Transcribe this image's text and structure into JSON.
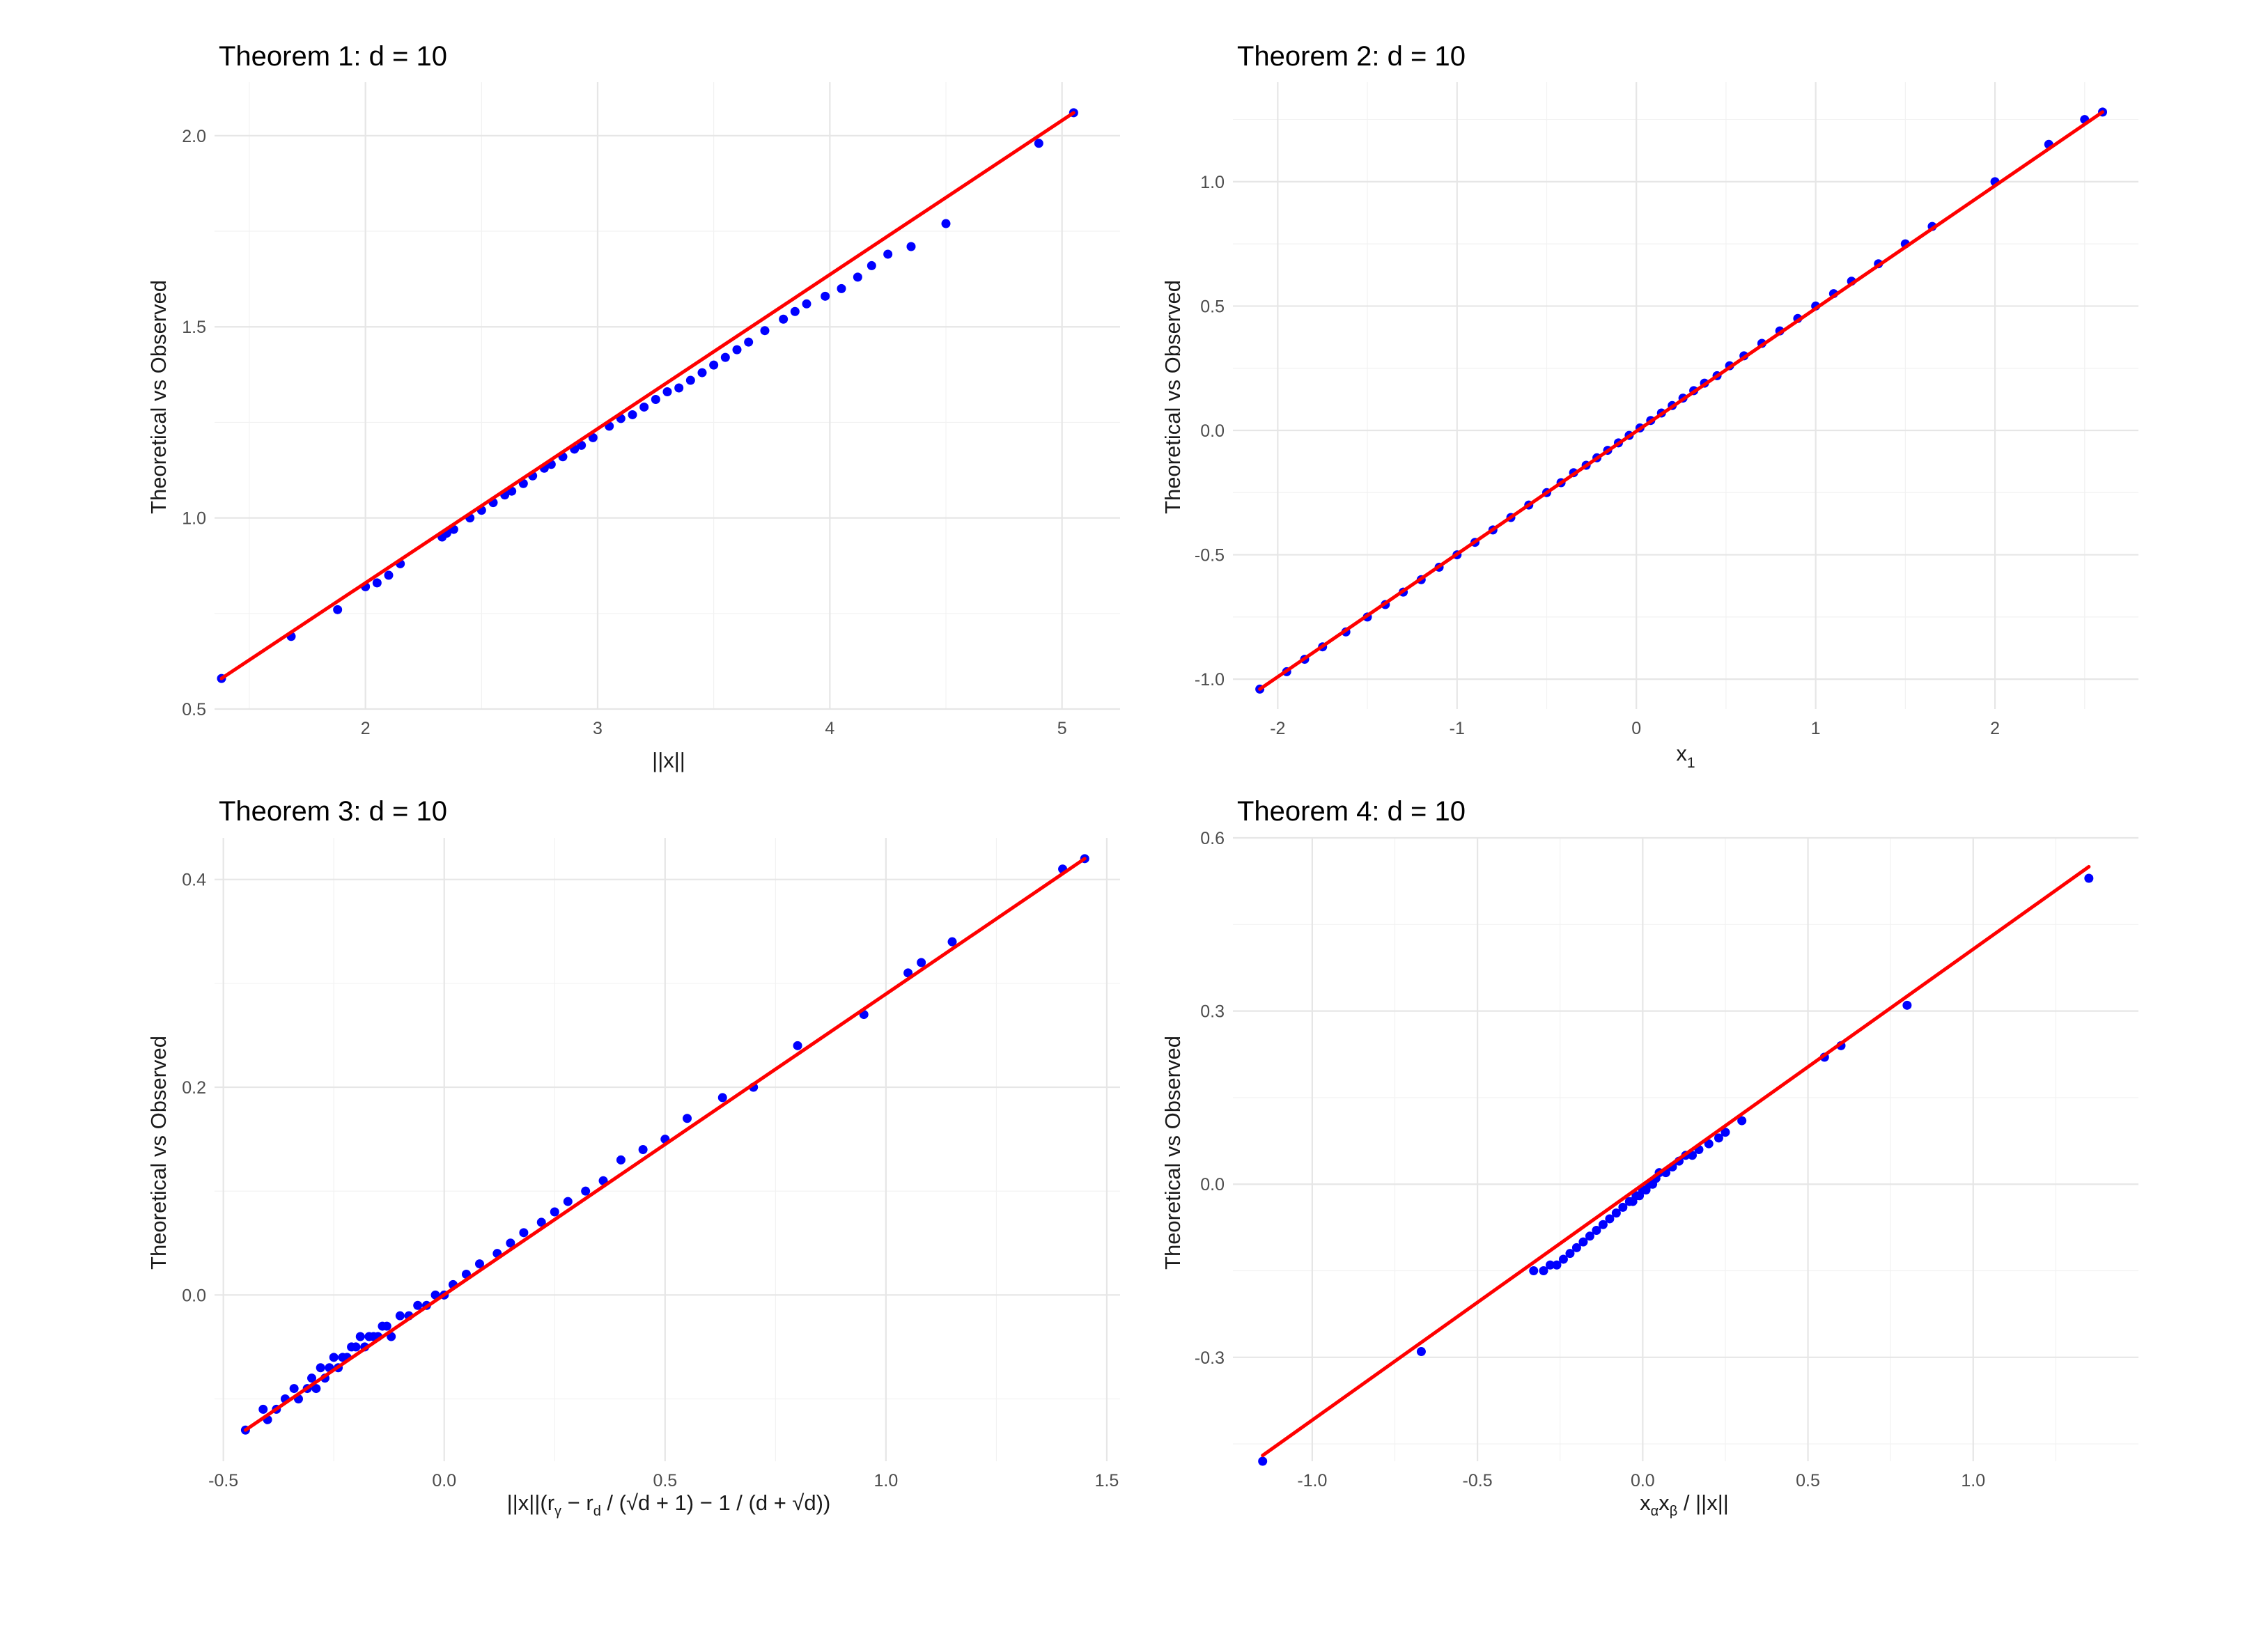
{
  "chart_data": [
    {
      "type": "scatter",
      "title": "Theorem 1: d = 10",
      "xlabel": "||x||",
      "ylabel": "Theoretical vs Observed",
      "xlim": [
        1.35,
        5.25
      ],
      "ylim": [
        0.5,
        2.14
      ],
      "xticks": [
        2,
        3,
        4,
        5
      ],
      "xtick_labels": [
        "2",
        "3",
        "4",
        "5"
      ],
      "yticks": [
        0.5,
        1.0,
        1.5,
        2.0
      ],
      "ytick_labels": [
        "0.5",
        "1.0",
        "1.5",
        "2.0"
      ],
      "grid": true,
      "point_color": "#0000ff",
      "line_color": "#ff0000",
      "line": {
        "x": [
          1.38,
          5.05
        ],
        "y": [
          0.58,
          2.06
        ]
      },
      "points": {
        "x": [
          1.38,
          1.68,
          1.88,
          2.0,
          2.05,
          2.1,
          2.15,
          2.33,
          2.35,
          2.38,
          2.45,
          2.5,
          2.55,
          2.6,
          2.63,
          2.68,
          2.72,
          2.77,
          2.8,
          2.85,
          2.9,
          2.93,
          2.98,
          3.05,
          3.1,
          3.15,
          3.2,
          3.25,
          3.3,
          3.35,
          3.4,
          3.45,
          3.5,
          3.55,
          3.6,
          3.65,
          3.72,
          3.8,
          3.85,
          3.9,
          3.98,
          4.05,
          4.12,
          4.18,
          4.25,
          4.35,
          4.5,
          4.9,
          5.05
        ],
        "y": [
          0.58,
          0.69,
          0.76,
          0.82,
          0.83,
          0.85,
          0.88,
          0.95,
          0.96,
          0.97,
          1.0,
          1.02,
          1.04,
          1.06,
          1.07,
          1.09,
          1.11,
          1.13,
          1.14,
          1.16,
          1.18,
          1.19,
          1.21,
          1.24,
          1.26,
          1.27,
          1.29,
          1.31,
          1.33,
          1.34,
          1.36,
          1.38,
          1.4,
          1.42,
          1.44,
          1.46,
          1.49,
          1.52,
          1.54,
          1.56,
          1.58,
          1.6,
          1.63,
          1.66,
          1.69,
          1.71,
          1.77,
          1.98,
          2.06
        ]
      }
    },
    {
      "type": "scatter",
      "title": "Theorem 2: d = 10",
      "xlabel": "x",
      "xlabel_sub": "1",
      "ylabel": "Theoretical vs Observed",
      "xlim": [
        -2.25,
        2.8
      ],
      "ylim": [
        -1.12,
        1.4
      ],
      "xticks": [
        -2,
        -1,
        0,
        1,
        2
      ],
      "xtick_labels": [
        "-2",
        "-1",
        "0",
        "1",
        "2"
      ],
      "yticks": [
        -1.0,
        -0.5,
        0.0,
        0.5,
        1.0
      ],
      "ytick_labels": [
        "-1.0",
        "-0.5",
        "0.0",
        "0.5",
        "1.0"
      ],
      "grid": true,
      "point_color": "#0000ff",
      "line_color": "#ff0000",
      "line": {
        "x": [
          -2.1,
          2.6
        ],
        "y": [
          -1.04,
          1.28
        ]
      },
      "points": {
        "x": [
          -2.1,
          -1.95,
          -1.85,
          -1.75,
          -1.62,
          -1.5,
          -1.4,
          -1.3,
          -1.2,
          -1.1,
          -1.0,
          -0.9,
          -0.8,
          -0.7,
          -0.6,
          -0.5,
          -0.42,
          -0.35,
          -0.28,
          -0.22,
          -0.16,
          -0.1,
          -0.04,
          0.02,
          0.08,
          0.14,
          0.2,
          0.26,
          0.32,
          0.38,
          0.45,
          0.52,
          0.6,
          0.7,
          0.8,
          0.9,
          1.0,
          1.1,
          1.2,
          1.35,
          1.5,
          1.65,
          2.0,
          2.3,
          2.5,
          2.6
        ],
        "y": [
          -1.04,
          -0.97,
          -0.92,
          -0.87,
          -0.81,
          -0.75,
          -0.7,
          -0.65,
          -0.6,
          -0.55,
          -0.5,
          -0.45,
          -0.4,
          -0.35,
          -0.3,
          -0.25,
          -0.21,
          -0.17,
          -0.14,
          -0.11,
          -0.08,
          -0.05,
          -0.02,
          0.01,
          0.04,
          0.07,
          0.1,
          0.13,
          0.16,
          0.19,
          0.22,
          0.26,
          0.3,
          0.35,
          0.4,
          0.45,
          0.5,
          0.55,
          0.6,
          0.67,
          0.75,
          0.82,
          1.0,
          1.15,
          1.25,
          1.28
        ]
      }
    },
    {
      "type": "scatter",
      "title": "Theorem 3: d = 10",
      "xlabel": "||x||(r",
      "xlabel_sub1": "γ",
      "xlabel_mid1": " − r",
      "xlabel_sub2": "d",
      "xlabel_mid2": " / (√d + 1) − 1 / (d + √d))",
      "ylabel": "Theoretical vs Observed",
      "xlim": [
        -0.52,
        1.53
      ],
      "ylim": [
        -0.16,
        0.44
      ],
      "xticks": [
        -0.5,
        0.0,
        0.5,
        1.0,
        1.5
      ],
      "xtick_labels": [
        "-0.5",
        "0.0",
        "0.5",
        "1.0",
        "1.5"
      ],
      "yticks": [
        0.0,
        0.2,
        0.4
      ],
      "ytick_labels": [
        "0.0",
        "0.2",
        "0.4"
      ],
      "grid": true,
      "point_color": "#0000ff",
      "line_color": "#ff0000",
      "line": {
        "x": [
          -0.45,
          1.45
        ],
        "y": [
          -0.13,
          0.42
        ]
      },
      "points": {
        "x": [
          -0.45,
          -0.41,
          -0.4,
          -0.38,
          -0.36,
          -0.34,
          -0.33,
          -0.31,
          -0.3,
          -0.29,
          -0.28,
          -0.27,
          -0.26,
          -0.25,
          -0.24,
          -0.23,
          -0.22,
          -0.21,
          -0.2,
          -0.19,
          -0.18,
          -0.17,
          -0.16,
          -0.15,
          -0.14,
          -0.13,
          -0.12,
          -0.1,
          -0.08,
          -0.06,
          -0.04,
          -0.02,
          0.0,
          0.02,
          0.05,
          0.08,
          0.12,
          0.15,
          0.18,
          0.22,
          0.25,
          0.28,
          0.32,
          0.36,
          0.4,
          0.45,
          0.5,
          0.55,
          0.63,
          0.7,
          0.8,
          0.95,
          1.05,
          1.08,
          1.15,
          1.4,
          1.45
        ],
        "y": [
          -0.13,
          -0.11,
          -0.12,
          -0.11,
          -0.1,
          -0.09,
          -0.1,
          -0.09,
          -0.08,
          -0.09,
          -0.07,
          -0.08,
          -0.07,
          -0.06,
          -0.07,
          -0.06,
          -0.06,
          -0.05,
          -0.05,
          -0.04,
          -0.05,
          -0.04,
          -0.04,
          -0.04,
          -0.03,
          -0.03,
          -0.04,
          -0.02,
          -0.02,
          -0.01,
          -0.01,
          0.0,
          0.0,
          0.01,
          0.02,
          0.03,
          0.04,
          0.05,
          0.06,
          0.07,
          0.08,
          0.09,
          0.1,
          0.11,
          0.13,
          0.14,
          0.15,
          0.17,
          0.19,
          0.2,
          0.24,
          0.27,
          0.31,
          0.32,
          0.34,
          0.41,
          0.42
        ]
      }
    },
    {
      "type": "scatter",
      "title": "Theorem 4: d = 10",
      "xlabel": "x",
      "xlabel_sub1": "α",
      "xlabel_mid1": "x",
      "xlabel_sub2": "β",
      "xlabel_tail": " / ||x||",
      "ylabel": "Theoretical vs Observed",
      "xlim": [
        -1.24,
        1.5
      ],
      "ylim": [
        -0.48,
        0.6
      ],
      "xticks": [
        -1.0,
        -0.5,
        0.0,
        0.5,
        1.0
      ],
      "xtick_labels": [
        "-1.0",
        "-0.5",
        "0.0",
        "0.5",
        "1.0"
      ],
      "yticks": [
        -0.3,
        0.0,
        0.3,
        0.6
      ],
      "ytick_labels": [
        "-0.3",
        "0.0",
        "0.3",
        "0.6"
      ],
      "grid": true,
      "point_color": "#0000ff",
      "line_color": "#ff0000",
      "line": {
        "x": [
          -1.15,
          1.35
        ],
        "y": [
          -0.47,
          0.55
        ]
      },
      "points": {
        "x": [
          -1.15,
          -0.67,
          -0.33,
          -0.3,
          -0.28,
          -0.26,
          -0.24,
          -0.22,
          -0.2,
          -0.18,
          -0.16,
          -0.14,
          -0.12,
          -0.1,
          -0.08,
          -0.06,
          -0.04,
          -0.03,
          -0.02,
          -0.01,
          0.0,
          0.01,
          0.02,
          0.03,
          0.04,
          0.05,
          0.07,
          0.09,
          0.11,
          0.13,
          0.15,
          0.17,
          0.2,
          0.23,
          0.25,
          0.3,
          0.55,
          0.6,
          0.8,
          1.35
        ],
        "y": [
          -0.48,
          -0.29,
          -0.15,
          -0.15,
          -0.14,
          -0.14,
          -0.13,
          -0.12,
          -0.11,
          -0.1,
          -0.09,
          -0.08,
          -0.07,
          -0.06,
          -0.05,
          -0.04,
          -0.03,
          -0.03,
          -0.02,
          -0.02,
          -0.01,
          -0.01,
          0.0,
          0.0,
          0.01,
          0.02,
          0.02,
          0.03,
          0.04,
          0.05,
          0.05,
          0.06,
          0.07,
          0.08,
          0.09,
          0.11,
          0.22,
          0.24,
          0.31,
          0.53
        ]
      }
    }
  ]
}
